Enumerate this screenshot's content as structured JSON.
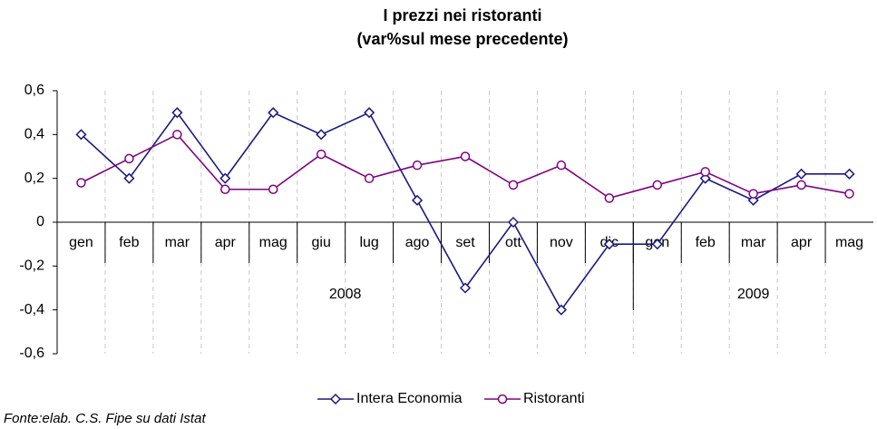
{
  "chart_data": {
    "type": "line",
    "title": "I prezzi nei ristoranti",
    "subtitle": "(var%sul mese precedente)",
    "groups": [
      {
        "label": "2008",
        "categories": [
          "gen",
          "feb",
          "mar",
          "apr",
          "mag",
          "giu",
          "lug",
          "ago",
          "set",
          "ott",
          "nov",
          "dic"
        ]
      },
      {
        "label": "2009",
        "categories": [
          "gen",
          "feb",
          "mar",
          "apr",
          "mag"
        ]
      }
    ],
    "series": [
      {
        "name": "Intera Economia",
        "color": "#1a1a80",
        "marker": "diamond",
        "values": [
          0.4,
          0.2,
          0.5,
          0.2,
          0.5,
          0.4,
          0.5,
          0.1,
          -0.3,
          0,
          -0.4,
          -0.1,
          -0.1,
          0.2,
          0.1,
          0.22,
          0.22
        ]
      },
      {
        "name": "Ristoranti",
        "color": "#800080",
        "marker": "circle",
        "values": [
          0.18,
          0.29,
          0.4,
          0.15,
          0.15,
          0.31,
          0.2,
          0.26,
          0.3,
          0.17,
          0.26,
          0.11,
          0.17,
          0.23,
          0.13,
          0.17,
          0.13
        ]
      }
    ],
    "ylim": [
      -0.6,
      0.6
    ],
    "yticks": [
      {
        "value": -0.6,
        "label": "-0,6"
      },
      {
        "value": -0.4,
        "label": "-0,4"
      },
      {
        "value": -0.2,
        "label": "-0,2"
      },
      0,
      {
        "value": 0.2,
        "label": "0,2"
      },
      {
        "value": 0.4,
        "label": "0,4"
      },
      {
        "value": 0.6,
        "label": "0,6"
      }
    ],
    "grid": true,
    "legend": "bottom",
    "source": "Fonte:elab. C.S. Fipe su dati Istat"
  }
}
